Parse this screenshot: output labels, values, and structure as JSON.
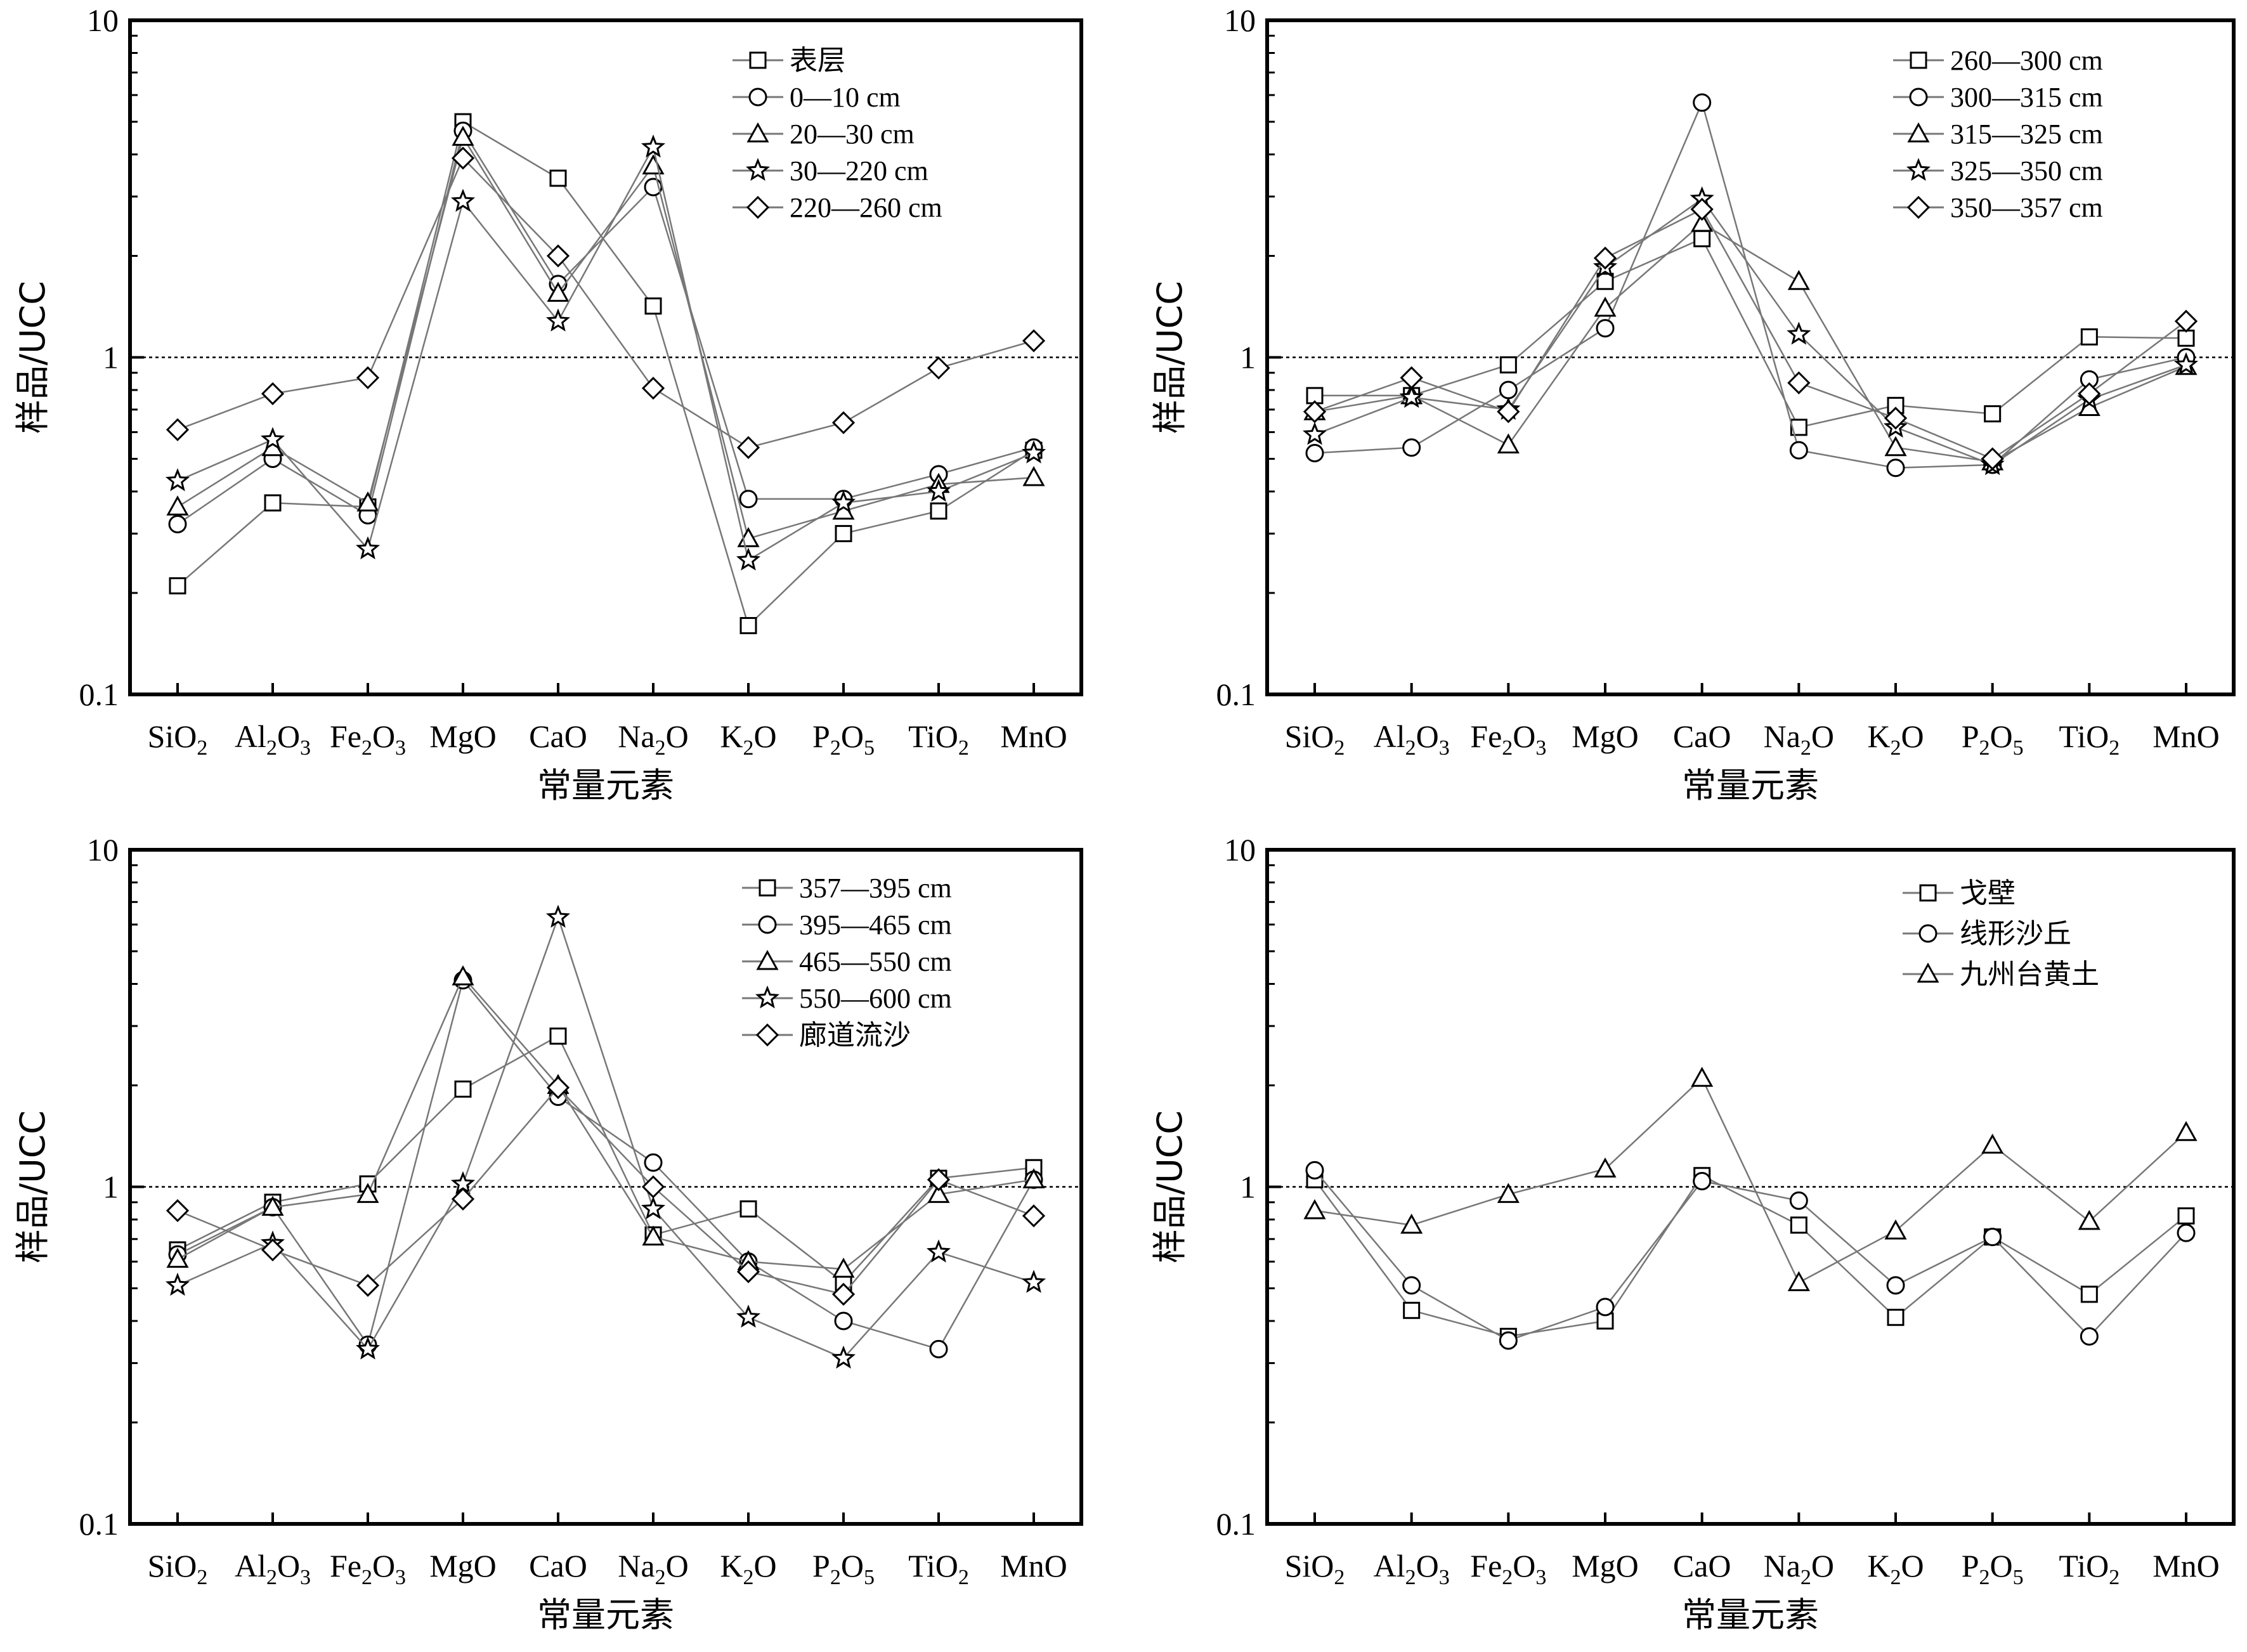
{
  "chart_data": [
    {
      "type": "line",
      "ylabel": "样品/UCC",
      "xlabel": "常量元素",
      "yscale": "log",
      "ylim": [
        0.1,
        10
      ],
      "yticks": [
        "0.1",
        "1",
        "10"
      ],
      "reference_line": 1,
      "categories": [
        "SiO2",
        "Al2O3",
        "Fe2O3",
        "MgO",
        "CaO",
        "Na2O",
        "K2O",
        "P2O5",
        "TiO2",
        "MnO"
      ],
      "legend_position": "top-right",
      "series": [
        {
          "name": "表层",
          "marker": "square",
          "values": [
            0.21,
            0.37,
            0.36,
            5.0,
            3.4,
            1.42,
            0.16,
            0.3,
            0.35,
            0.53
          ]
        },
        {
          "name": "0—10 cm",
          "marker": "circle",
          "values": [
            0.32,
            0.5,
            0.34,
            4.7,
            1.65,
            3.2,
            0.38,
            0.38,
            0.45,
            0.54
          ]
        },
        {
          "name": "20—30 cm",
          "marker": "triangle",
          "values": [
            0.36,
            0.54,
            0.37,
            4.5,
            1.55,
            3.7,
            0.29,
            0.35,
            0.42,
            0.44
          ]
        },
        {
          "name": "30—220 cm",
          "marker": "star",
          "values": [
            0.43,
            0.57,
            0.27,
            2.9,
            1.28,
            4.2,
            0.25,
            0.37,
            0.4,
            0.52
          ]
        },
        {
          "name": "220—260 cm",
          "marker": "diamond",
          "values": [
            0.61,
            0.78,
            0.87,
            3.9,
            2.0,
            0.81,
            0.54,
            0.64,
            0.93,
            1.12
          ]
        }
      ]
    },
    {
      "type": "line",
      "ylabel": "样品/UCC",
      "xlabel": "常量元素",
      "yscale": "log",
      "ylim": [
        0.1,
        10
      ],
      "yticks": [
        "0.1",
        "1",
        "10"
      ],
      "reference_line": 1,
      "categories": [
        "SiO2",
        "Al2O3",
        "Fe2O3",
        "MgO",
        "CaO",
        "Na2O",
        "K2O",
        "P2O5",
        "TiO2",
        "MnO"
      ],
      "legend_position": "top-right",
      "series": [
        {
          "name": "260—300 cm",
          "marker": "square",
          "values": [
            0.77,
            0.77,
            0.95,
            1.68,
            2.25,
            0.62,
            0.72,
            0.68,
            1.15,
            1.14
          ]
        },
        {
          "name": "300—315 cm",
          "marker": "circle",
          "values": [
            0.52,
            0.54,
            0.8,
            1.22,
            5.7,
            0.53,
            0.47,
            0.48,
            0.86,
            1.0
          ]
        },
        {
          "name": "315—325 cm",
          "marker": "triangle",
          "values": [
            0.69,
            0.77,
            0.55,
            1.4,
            2.5,
            1.68,
            0.54,
            0.49,
            0.71,
            0.94
          ]
        },
        {
          "name": "325—350 cm",
          "marker": "star",
          "values": [
            0.59,
            0.76,
            0.7,
            1.85,
            2.95,
            1.17,
            0.62,
            0.48,
            0.75,
            0.95
          ]
        },
        {
          "name": "350—357 cm",
          "marker": "diamond",
          "values": [
            0.69,
            0.87,
            0.69,
            1.97,
            2.75,
            0.84,
            0.66,
            0.5,
            0.78,
            1.28
          ]
        }
      ]
    },
    {
      "type": "line",
      "ylabel": "样品/UCC",
      "xlabel": "常量元素",
      "yscale": "log",
      "ylim": [
        0.1,
        10
      ],
      "yticks": [
        "0.1",
        "1",
        "10"
      ],
      "reference_line": 1,
      "categories": [
        "SiO2",
        "Al2O3",
        "Fe2O3",
        "MgO",
        "CaO",
        "Na2O",
        "K2O",
        "P2O5",
        "TiO2",
        "MnO"
      ],
      "legend_position": "top-right",
      "series": [
        {
          "name": "357—395 cm",
          "marker": "square",
          "values": [
            0.65,
            0.9,
            1.02,
            1.95,
            2.8,
            0.72,
            0.86,
            0.52,
            1.06,
            1.14
          ]
        },
        {
          "name": "395—465 cm",
          "marker": "circle",
          "values": [
            0.63,
            0.87,
            0.34,
            4.1,
            1.85,
            1.18,
            0.6,
            0.4,
            0.33,
            1.05
          ]
        },
        {
          "name": "465—550 cm",
          "marker": "triangle",
          "values": [
            0.61,
            0.87,
            0.95,
            4.2,
            2.0,
            0.71,
            0.6,
            0.57,
            0.95,
            1.05
          ]
        },
        {
          "name": "550—600 cm",
          "marker": "star",
          "values": [
            0.51,
            0.68,
            0.33,
            1.02,
            6.3,
            0.86,
            0.41,
            0.31,
            0.64,
            0.52
          ]
        },
        {
          "name": "廊道流沙",
          "marker": "diamond",
          "values": [
            0.85,
            0.65,
            0.51,
            0.92,
            1.97,
            1.0,
            0.56,
            0.48,
            1.05,
            0.82
          ]
        }
      ]
    },
    {
      "type": "line",
      "ylabel": "样品/UCC",
      "xlabel": "常量元素",
      "yscale": "log",
      "ylim": [
        0.1,
        10
      ],
      "yticks": [
        "0.1",
        "1",
        "10"
      ],
      "reference_line": 1,
      "categories": [
        "SiO2",
        "Al2O3",
        "Fe2O3",
        "MgO",
        "CaO",
        "Na2O",
        "K2O",
        "P2O5",
        "TiO2",
        "MnO"
      ],
      "legend_position": "top-right",
      "series": [
        {
          "name": "戈壁",
          "marker": "square",
          "values": [
            1.05,
            0.43,
            0.36,
            0.4,
            1.08,
            0.77,
            0.41,
            0.71,
            0.48,
            0.82
          ]
        },
        {
          "name": "线形沙丘",
          "marker": "circle",
          "values": [
            1.12,
            0.51,
            0.35,
            0.44,
            1.04,
            0.91,
            0.51,
            0.71,
            0.36,
            0.73
          ]
        },
        {
          "name": "九州台黄土",
          "marker": "triangle",
          "values": [
            0.85,
            0.77,
            0.95,
            1.13,
            2.1,
            0.52,
            0.74,
            1.33,
            0.79,
            1.45
          ]
        }
      ]
    }
  ],
  "colors": {
    "line": "#777777",
    "marker": "#000000",
    "frame": "#000000",
    "reference_line": "#000000"
  }
}
